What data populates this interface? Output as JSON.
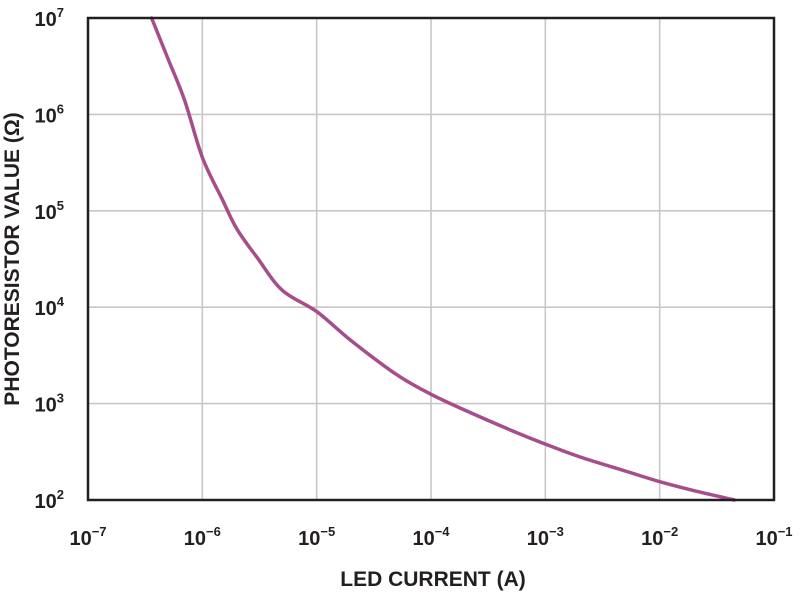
{
  "chart_data": {
    "type": "line",
    "xlabel": "LED CURRENT (A)",
    "ylabel": "PHOTORESISTOR VALUE (Ω)",
    "x_scale": "log",
    "y_scale": "log",
    "xlim": [
      1e-07,
      0.1
    ],
    "ylim": [
      100,
      10000000
    ],
    "grid": true,
    "x_ticks": [
      {
        "base": "10",
        "exp": "−7",
        "value": 1e-07
      },
      {
        "base": "10",
        "exp": "−6",
        "value": 1e-06
      },
      {
        "base": "10",
        "exp": "−5",
        "value": 1e-05
      },
      {
        "base": "10",
        "exp": "−4",
        "value": 0.0001
      },
      {
        "base": "10",
        "exp": "−3",
        "value": 0.001
      },
      {
        "base": "10",
        "exp": "−2",
        "value": 0.01
      },
      {
        "base": "10",
        "exp": "−1",
        "value": 0.1
      }
    ],
    "y_ticks": [
      {
        "base": "10",
        "exp": "2",
        "value": 100
      },
      {
        "base": "10",
        "exp": "3",
        "value": 1000
      },
      {
        "base": "10",
        "exp": "4",
        "value": 10000
      },
      {
        "base": "10",
        "exp": "5",
        "value": 100000
      },
      {
        "base": "10",
        "exp": "6",
        "value": 1000000
      },
      {
        "base": "10",
        "exp": "7",
        "value": 10000000
      }
    ],
    "series": [
      {
        "color": "#a64d8c",
        "x": [
          3.6e-07,
          5e-07,
          7e-07,
          1e-06,
          1.5e-06,
          2e-06,
          3e-06,
          5e-06,
          1e-05,
          2e-05,
          5e-05,
          0.0001,
          0.0002,
          0.0005,
          0.001,
          0.002,
          0.005,
          0.01,
          0.02,
          0.045
        ],
        "y": [
          10000000,
          3800000,
          1400000,
          360000,
          130000,
          65000,
          33000,
          15000,
          9000,
          4500,
          2000,
          1250,
          850,
          530,
          380,
          280,
          200,
          155,
          125,
          100
        ]
      }
    ]
  }
}
